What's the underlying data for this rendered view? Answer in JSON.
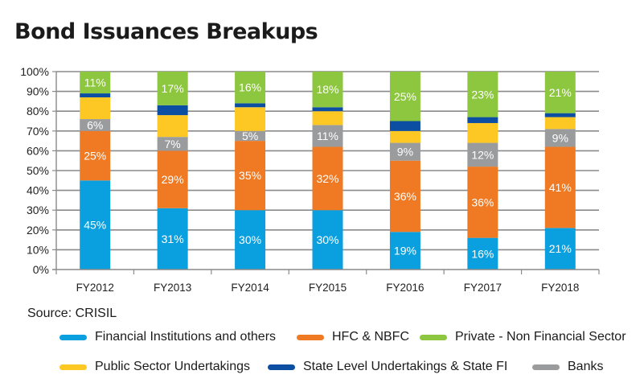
{
  "chart_data": {
    "type": "bar",
    "stacked": true,
    "title": "Bond Issuances Breakups",
    "xlabel": "",
    "ylabel": "",
    "ylim": [
      0,
      100
    ],
    "yticks": [
      "0%",
      "10%",
      "20%",
      "30%",
      "40%",
      "50%",
      "60%",
      "70%",
      "80%",
      "90%",
      "100%"
    ],
    "grid": true,
    "legend_position": "bottom",
    "categories": [
      "FY2012",
      "FY2013",
      "FY2014",
      "FY2015",
      "FY2016",
      "FY2017",
      "FY2018"
    ],
    "series": [
      {
        "name": "Financial Institutions and others",
        "color": "#0aa0e0",
        "values": [
          45,
          31,
          30,
          30,
          19,
          16,
          21
        ],
        "labeled": true
      },
      {
        "name": "HFC & NBFC",
        "color": "#f07a23",
        "values": [
          25,
          29,
          35,
          32,
          36,
          36,
          41
        ],
        "labeled": true
      },
      {
        "name": "Banks",
        "color": "#9a9b9d",
        "values": [
          6,
          7,
          5,
          11,
          9,
          12,
          9
        ],
        "labeled": true
      },
      {
        "name": "Public Sector Undertakings",
        "color": "#fdc824",
        "values": [
          11,
          11,
          12,
          7,
          6,
          10,
          6
        ],
        "labeled": false
      },
      {
        "name": "State Level Undertakings & State FI",
        "color": "#0b4ea2",
        "values": [
          2,
          5,
          2,
          2,
          5,
          3,
          2
        ],
        "labeled": false
      },
      {
        "name": "Private - Non Financial Sector",
        "color": "#8dc63f",
        "values": [
          11,
          17,
          16,
          18,
          25,
          23,
          21
        ],
        "labeled": true
      }
    ]
  },
  "source": "Source: CRISIL",
  "legend": [
    {
      "label": "Financial Institutions and others",
      "color": "#0aa0e0"
    },
    {
      "label": "HFC & NBFC",
      "color": "#f07a23"
    },
    {
      "label": "Private - Non Financial Sector",
      "color": "#8dc63f"
    },
    {
      "label": "Public Sector Undertakings",
      "color": "#fdc824"
    },
    {
      "label": "State Level Undertakings & State FI",
      "color": "#0b4ea2"
    },
    {
      "label": "Banks",
      "color": "#9a9b9d"
    }
  ]
}
